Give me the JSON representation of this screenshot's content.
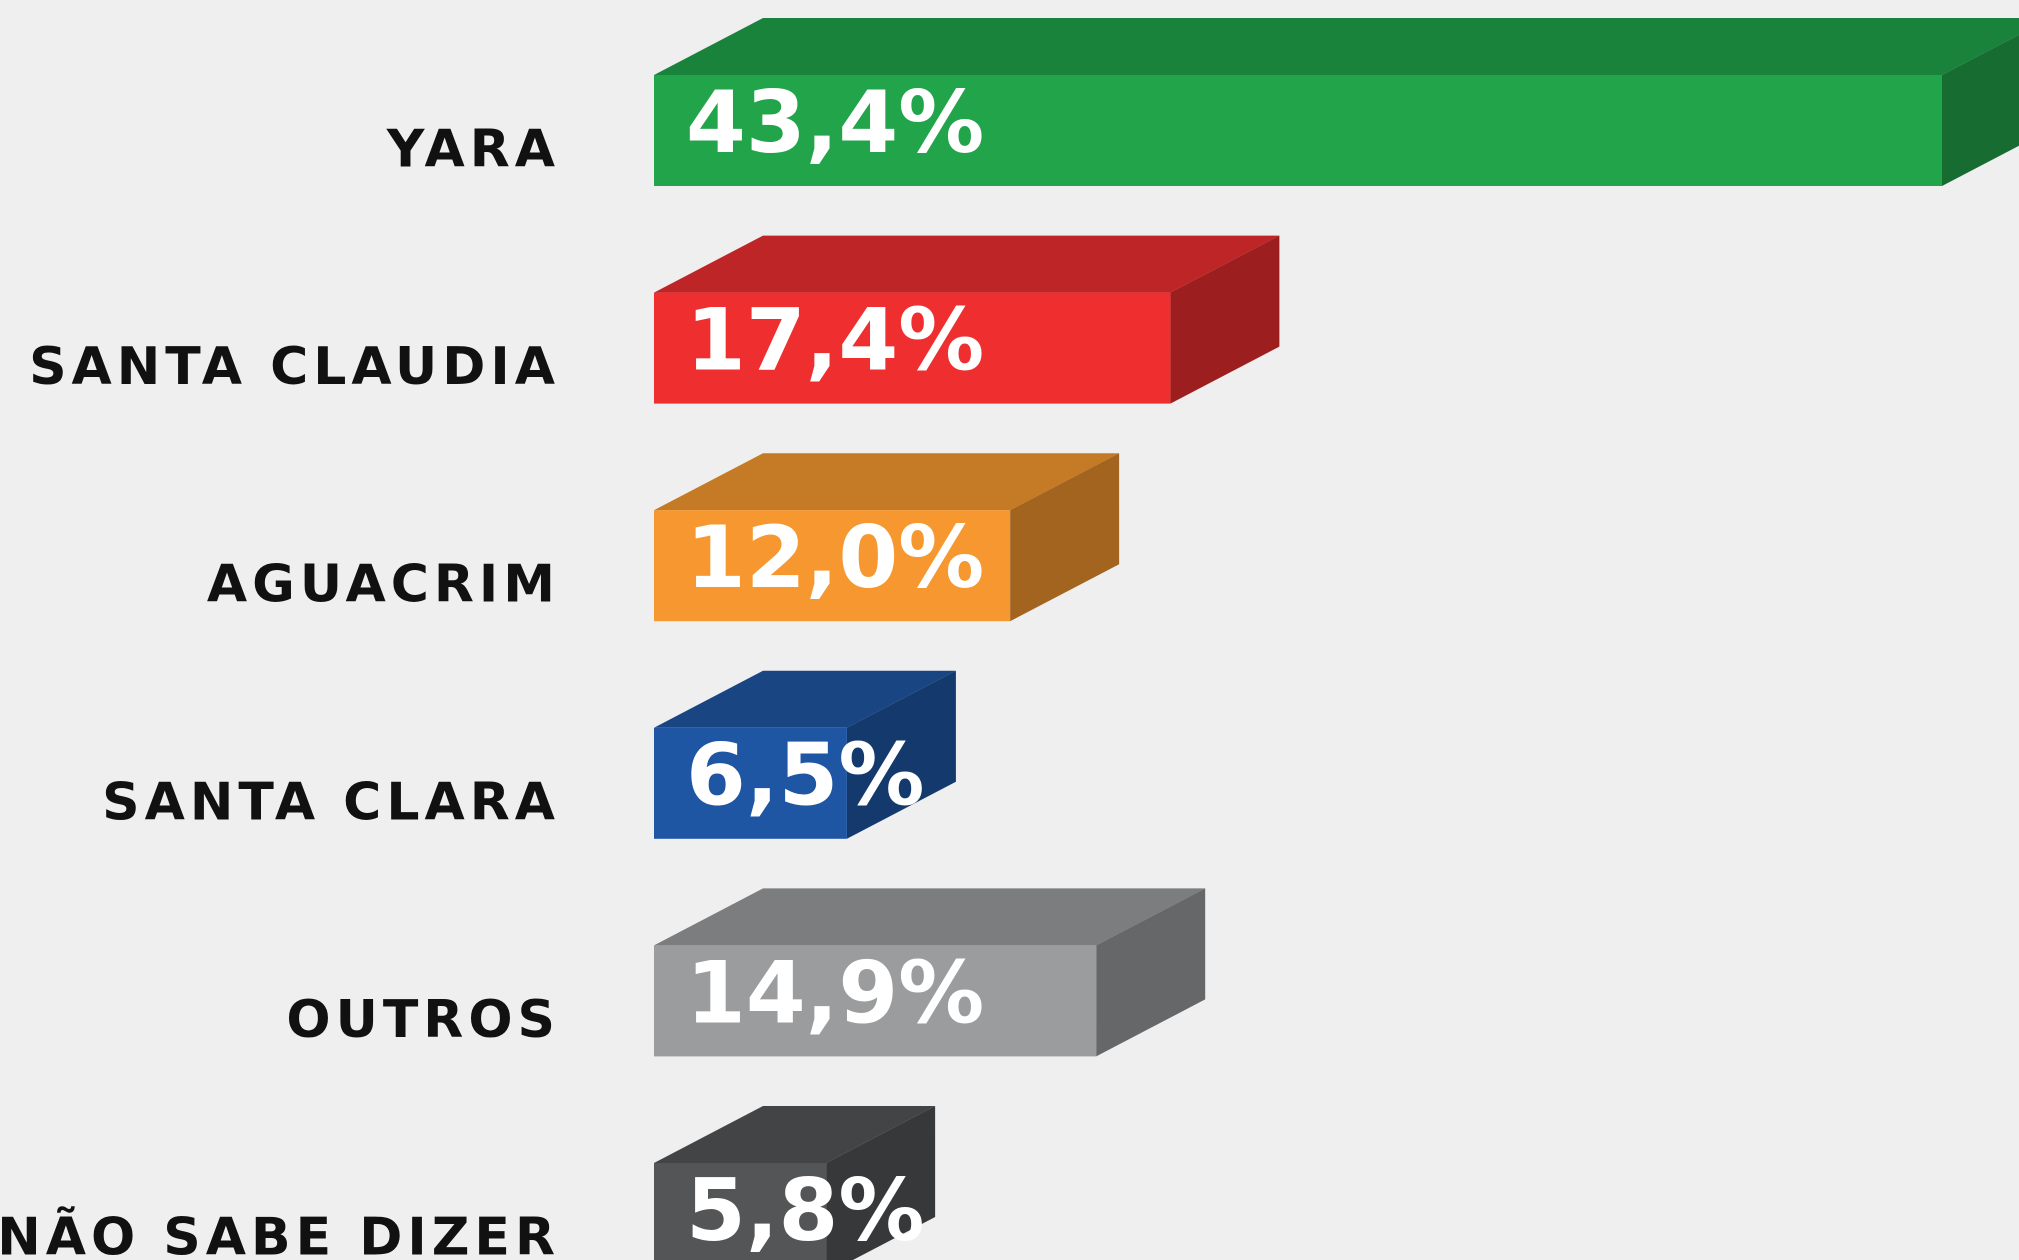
{
  "chart_data": {
    "type": "bar3d",
    "categories": [
      "YARA",
      "SANTA CLAUDIA",
      "AGUACRIM",
      "SANTA CLARA",
      "OUTROS",
      "NÃO SABE DIZER"
    ],
    "values": [
      43.4,
      17.4,
      12.0,
      6.5,
      14.9,
      5.8
    ],
    "value_labels": [
      "43,4%",
      "17,4%",
      "12,0%",
      "6,5%",
      "14,9%",
      "5,8%"
    ],
    "colors": [
      "#21a44a",
      "#ee2e2f",
      "#f6982f",
      "#1f56a4",
      "#9a9c9e",
      "#545556"
    ]
  }
}
